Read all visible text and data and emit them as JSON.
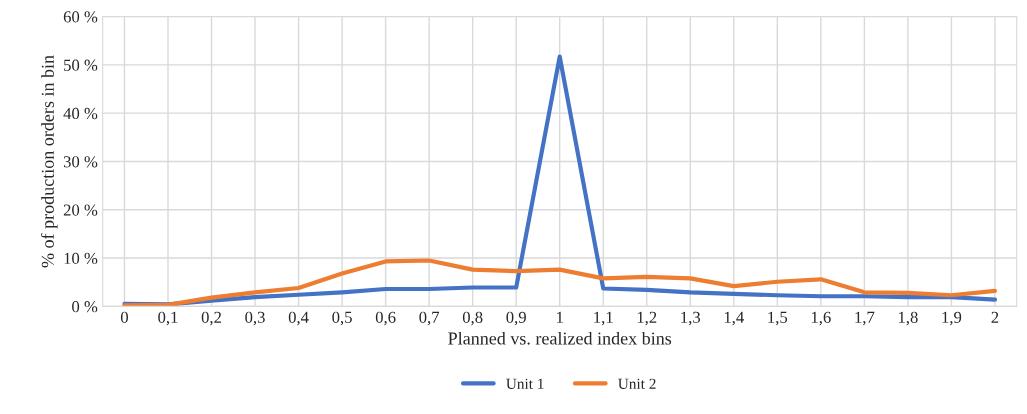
{
  "chart_data": {
    "type": "line",
    "xlabel": "Planned vs. realized index bins",
    "ylabel": "% of production orders in bin",
    "categories": [
      "0",
      "0,1",
      "0,2",
      "0,3",
      "0,4",
      "0,5",
      "0,6",
      "0,7",
      "0,8",
      "0,9",
      "1",
      "1,1",
      "1,2",
      "1,3",
      "1,4",
      "1,5",
      "1,6",
      "1,7",
      "1,8",
      "1,9",
      "2"
    ],
    "series": [
      {
        "name": "Unit 1",
        "color": "#4472c4",
        "values": [
          0.5,
          0.4,
          1.2,
          1.9,
          2.4,
          2.9,
          3.6,
          3.6,
          3.9,
          3.9,
          51.7,
          3.7,
          3.4,
          2.9,
          2.6,
          2.3,
          2.1,
          2.1,
          1.9,
          1.9,
          1.4
        ]
      },
      {
        "name": "Unit 2",
        "color": "#ed7d31",
        "values": [
          0.2,
          0.3,
          1.8,
          2.9,
          3.8,
          6.8,
          9.3,
          9.5,
          7.6,
          7.3,
          7.6,
          5.8,
          6.1,
          5.8,
          4.2,
          5.1,
          5.6,
          2.9,
          2.8,
          2.3,
          3.2
        ]
      }
    ],
    "ylim": [
      0,
      60
    ],
    "yticks": [
      {
        "value": 0,
        "label": "0 %"
      },
      {
        "value": 10,
        "label": "10 %"
      },
      {
        "value": 20,
        "label": "20 %"
      },
      {
        "value": 30,
        "label": "30 %"
      },
      {
        "value": 40,
        "label": "40 %"
      },
      {
        "value": 50,
        "label": "50 %"
      },
      {
        "value": 60,
        "label": "60 %"
      }
    ],
    "grid": true,
    "legend": "bottom",
    "marker": "none",
    "line_style": "solid"
  }
}
